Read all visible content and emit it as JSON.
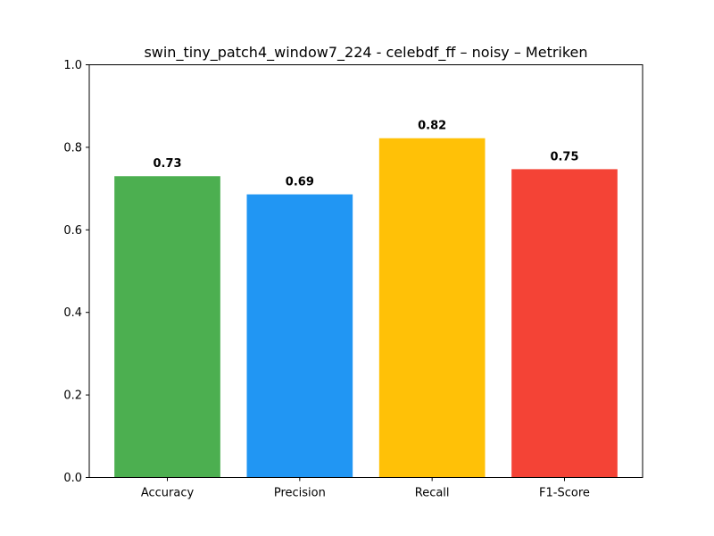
{
  "chart_data": {
    "type": "bar",
    "title": "swin_tiny_patch4_window7_224 - celebdf_ff – noisy – Metriken",
    "xlabel": "",
    "ylabel": "",
    "ylim": [
      0,
      1.0
    ],
    "yticks": [
      "0.0",
      "0.2",
      "0.4",
      "0.6",
      "0.8",
      "1.0"
    ],
    "ytick_values": [
      0,
      0.2,
      0.4,
      0.6,
      0.8,
      1.0
    ],
    "categories": [
      "Accuracy",
      "Precision",
      "Recall",
      "F1-Score"
    ],
    "values": [
      0.73,
      0.686,
      0.822,
      0.747
    ],
    "data_labels": [
      "0.73",
      "0.69",
      "0.82",
      "0.75"
    ],
    "colors": [
      "#4caf50",
      "#2196f3",
      "#ffc107",
      "#f44336"
    ],
    "grid": false,
    "legend": "none"
  }
}
